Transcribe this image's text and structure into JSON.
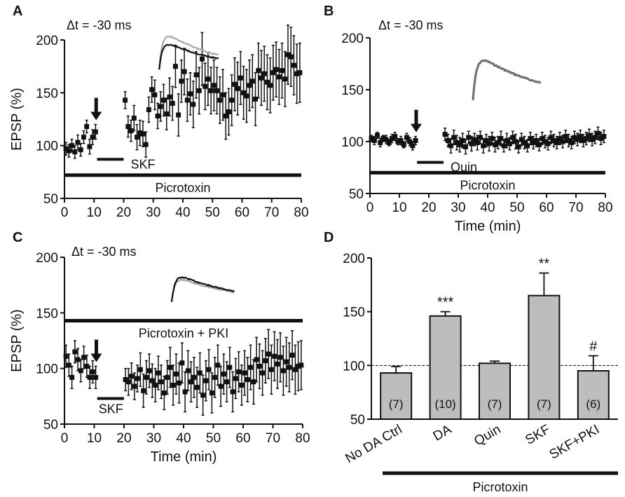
{
  "figure": {
    "panels": [
      "A",
      "B",
      "C",
      "D"
    ]
  },
  "colors": {
    "ink": "#111111",
    "bar": "#bdbdbd",
    "trace_light": "#a8a8a8",
    "trace_dark": "#111111"
  },
  "chart_data": [
    {
      "id": "A",
      "type": "scatter",
      "panel_label": "A",
      "annotation": "Δt = -30 ms",
      "ylabel": "EPSP (%)",
      "xlabel": "",
      "xlim": [
        0,
        80
      ],
      "ylim": [
        50,
        200
      ],
      "xticks": [
        "0",
        "10",
        "20",
        "30",
        "40",
        "50",
        "60",
        "70",
        "80"
      ],
      "yticks": [
        "50",
        "100",
        "150",
        "200"
      ],
      "arrow_at_min": 10,
      "drug_bar": {
        "label": "SKF",
        "from": 11,
        "to": 20,
        "y": 87
      },
      "baseline_bar": {
        "label": "Picrotoxin",
        "from": 0,
        "to": 80,
        "y": 72
      },
      "points": [
        [
          0.5,
          97,
          6
        ],
        [
          1.5,
          95,
          6
        ],
        [
          2.5,
          100,
          6
        ],
        [
          3.5,
          94,
          6
        ],
        [
          4.5,
          103,
          7
        ],
        [
          5.5,
          96,
          6
        ],
        [
          6.5,
          108,
          6
        ],
        [
          7.5,
          118,
          6
        ],
        [
          8.5,
          99,
          7
        ],
        [
          9.5,
          108,
          7
        ],
        [
          10.5,
          113,
          7
        ],
        [
          20.5,
          143,
          8
        ],
        [
          21.5,
          118,
          10
        ],
        [
          22.5,
          114,
          10
        ],
        [
          23.5,
          126,
          12
        ],
        [
          24.5,
          108,
          12
        ],
        [
          25.5,
          112,
          12
        ],
        [
          26.5,
          111,
          12
        ],
        [
          27.5,
          101,
          12
        ],
        [
          28.5,
          134,
          12
        ],
        [
          29.5,
          153,
          12
        ],
        [
          30.5,
          148,
          14
        ],
        [
          31.5,
          128,
          12
        ],
        [
          32.5,
          137,
          14
        ],
        [
          33.5,
          143,
          15
        ],
        [
          34.5,
          130,
          15
        ],
        [
          35.5,
          146,
          18
        ],
        [
          36.5,
          140,
          16
        ],
        [
          37.5,
          175,
          20
        ],
        [
          38.5,
          129,
          20
        ],
        [
          39.5,
          161,
          20
        ],
        [
          40.5,
          170,
          22
        ],
        [
          41.5,
          143,
          20
        ],
        [
          42.5,
          149,
          20
        ],
        [
          43.5,
          139,
          22
        ],
        [
          44.5,
          167,
          22
        ],
        [
          45.5,
          152,
          22
        ],
        [
          46.5,
          182,
          25
        ],
        [
          47.5,
          156,
          22
        ],
        [
          48.5,
          163,
          25
        ],
        [
          49.5,
          152,
          22
        ],
        [
          50.5,
          157,
          24
        ],
        [
          51.5,
          152,
          22
        ],
        [
          52.5,
          143,
          22
        ],
        [
          53.5,
          148,
          24
        ],
        [
          54.5,
          128,
          22
        ],
        [
          55.5,
          132,
          22
        ],
        [
          56.5,
          143,
          24
        ],
        [
          57.5,
          158,
          25
        ],
        [
          58.5,
          154,
          25
        ],
        [
          59.5,
          164,
          25
        ],
        [
          60.5,
          150,
          25
        ],
        [
          61.5,
          147,
          25
        ],
        [
          62.5,
          157,
          24
        ],
        [
          63.5,
          161,
          25
        ],
        [
          64.5,
          144,
          25
        ],
        [
          65.5,
          171,
          26
        ],
        [
          66.5,
          164,
          26
        ],
        [
          67.5,
          168,
          26
        ],
        [
          68.5,
          160,
          26
        ],
        [
          69.5,
          157,
          26
        ],
        [
          70.5,
          169,
          26
        ],
        [
          71.5,
          172,
          26
        ],
        [
          72.5,
          165,
          26
        ],
        [
          73.5,
          171,
          26
        ],
        [
          74.5,
          163,
          26
        ],
        [
          75.5,
          186,
          28
        ],
        [
          76.5,
          184,
          28
        ],
        [
          77.5,
          176,
          28
        ],
        [
          78.5,
          168,
          28
        ],
        [
          79.5,
          169,
          28
        ]
      ],
      "inset": {
        "x0": 32,
        "x1": 52,
        "y_top": 205,
        "y_bottom": 172,
        "overlay_rise": 0.75,
        "style": "light_above"
      }
    },
    {
      "id": "B",
      "type": "scatter",
      "panel_label": "B",
      "annotation": "Δt = -30 ms",
      "ylabel": "",
      "xlabel": "Time (min)",
      "xlim": [
        0,
        80
      ],
      "ylim": [
        50,
        200
      ],
      "xticks": [
        "0",
        "10",
        "20",
        "30",
        "40",
        "50",
        "60",
        "70",
        "80"
      ],
      "yticks": [
        "50",
        "100",
        "150",
        "200"
      ],
      "arrow_at_min": 15,
      "drug_bar": {
        "label": "Quin",
        "from": 16,
        "to": 25,
        "y": 80
      },
      "baseline_bar": {
        "label": "Picrotoxin",
        "from": 0,
        "to": 80,
        "y": 70
      },
      "points": [
        [
          0.5,
          103,
          3
        ],
        [
          1.5,
          101,
          4
        ],
        [
          2.5,
          106,
          3
        ],
        [
          3.5,
          99,
          4
        ],
        [
          4.5,
          103,
          3
        ],
        [
          5.5,
          102,
          4
        ],
        [
          6.5,
          99,
          3
        ],
        [
          7.5,
          103,
          4
        ],
        [
          8.5,
          105,
          4
        ],
        [
          9.5,
          100,
          3
        ],
        [
          10.5,
          101,
          4
        ],
        [
          11.5,
          97,
          3
        ],
        [
          12.5,
          104,
          4
        ],
        [
          13.5,
          100,
          4
        ],
        [
          14.5,
          96,
          4
        ],
        [
          15.5,
          101,
          4
        ],
        [
          25.5,
          107,
          6
        ],
        [
          26.5,
          101,
          6
        ],
        [
          27.5,
          96,
          7
        ],
        [
          28.5,
          104,
          7
        ],
        [
          29.5,
          99,
          7
        ],
        [
          30.5,
          97,
          7
        ],
        [
          31.5,
          101,
          7
        ],
        [
          32.5,
          95,
          7
        ],
        [
          33.5,
          104,
          6
        ],
        [
          34.5,
          98,
          7
        ],
        [
          35.5,
          102,
          6
        ],
        [
          36.5,
          99,
          7
        ],
        [
          37.5,
          104,
          6
        ],
        [
          38.5,
          96,
          7
        ],
        [
          39.5,
          101,
          6
        ],
        [
          40.5,
          98,
          7
        ],
        [
          41.5,
          103,
          6
        ],
        [
          42.5,
          97,
          7
        ],
        [
          43.5,
          99,
          6
        ],
        [
          44.5,
          103,
          7
        ],
        [
          45.5,
          96,
          6
        ],
        [
          46.5,
          101,
          7
        ],
        [
          47.5,
          98,
          6
        ],
        [
          48.5,
          104,
          6
        ],
        [
          49.5,
          100,
          7
        ],
        [
          50.5,
          95,
          6
        ],
        [
          51.5,
          102,
          6
        ],
        [
          52.5,
          99,
          6
        ],
        [
          53.5,
          96,
          6
        ],
        [
          54.5,
          103,
          6
        ],
        [
          55.5,
          99,
          6
        ],
        [
          56.5,
          101,
          6
        ],
        [
          57.5,
          97,
          6
        ],
        [
          58.5,
          103,
          6
        ],
        [
          59.5,
          100,
          6
        ],
        [
          60.5,
          98,
          6
        ],
        [
          61.5,
          104,
          6
        ],
        [
          62.5,
          101,
          6
        ],
        [
          63.5,
          99,
          6
        ],
        [
          64.5,
          103,
          6
        ],
        [
          65.5,
          100,
          6
        ],
        [
          66.5,
          105,
          6
        ],
        [
          67.5,
          101,
          6
        ],
        [
          68.5,
          99,
          6
        ],
        [
          69.5,
          104,
          6
        ],
        [
          70.5,
          102,
          6
        ],
        [
          71.5,
          105,
          6
        ],
        [
          72.5,
          101,
          6
        ],
        [
          73.5,
          103,
          6
        ],
        [
          74.5,
          106,
          6
        ],
        [
          75.5,
          102,
          6
        ],
        [
          76.5,
          104,
          6
        ],
        [
          77.5,
          108,
          6
        ],
        [
          78.5,
          103,
          6
        ],
        [
          79.5,
          105,
          6
        ]
      ],
      "inset": {
        "x0": 35,
        "x1": 58,
        "y_top": 180,
        "y_bottom": 140,
        "overlay_rise": 1.0,
        "style": "single"
      }
    },
    {
      "id": "C",
      "type": "scatter",
      "panel_label": "C",
      "annotation": "Δt = -30 ms",
      "ylabel": "EPSP (%)",
      "xlabel": "Time (min)",
      "xlim": [
        0,
        80
      ],
      "ylim": [
        50,
        200
      ],
      "xticks": [
        "0",
        "10",
        "20",
        "30",
        "40",
        "50",
        "60",
        "70",
        "80"
      ],
      "yticks": [
        "50",
        "100",
        "150",
        "200"
      ],
      "arrow_at_min": 10,
      "drug_bar": {
        "label": "SKF",
        "from": 11,
        "to": 20,
        "y": 73
      },
      "baseline_bar": {
        "label": "Picrotoxin + PKI",
        "from": 0,
        "to": 80,
        "y": 143
      },
      "points": [
        [
          0.5,
          111,
          10
        ],
        [
          1.5,
          103,
          10
        ],
        [
          2.5,
          92,
          10
        ],
        [
          3.5,
          115,
          10
        ],
        [
          4.5,
          108,
          10
        ],
        [
          5.5,
          98,
          10
        ],
        [
          6.5,
          110,
          10
        ],
        [
          7.5,
          102,
          10
        ],
        [
          8.5,
          92,
          10
        ],
        [
          9.5,
          97,
          10
        ],
        [
          10.5,
          92,
          10
        ],
        [
          20.5,
          90,
          10
        ],
        [
          21.5,
          88,
          12
        ],
        [
          22.5,
          93,
          12
        ],
        [
          23.5,
          84,
          12
        ],
        [
          24.5,
          91,
          12
        ],
        [
          25.5,
          99,
          15
        ],
        [
          26.5,
          80,
          15
        ],
        [
          27.5,
          92,
          15
        ],
        [
          28.5,
          98,
          15
        ],
        [
          29.5,
          89,
          15
        ],
        [
          30.5,
          85,
          15
        ],
        [
          31.5,
          96,
          15
        ],
        [
          32.5,
          88,
          15
        ],
        [
          33.5,
          78,
          15
        ],
        [
          34.5,
          92,
          15
        ],
        [
          35.5,
          101,
          18
        ],
        [
          36.5,
          85,
          18
        ],
        [
          37.5,
          95,
          18
        ],
        [
          38.5,
          87,
          18
        ],
        [
          39.5,
          105,
          18
        ],
        [
          40.5,
          79,
          18
        ],
        [
          41.5,
          98,
          18
        ],
        [
          42.5,
          88,
          18
        ],
        [
          43.5,
          92,
          18
        ],
        [
          44.5,
          83,
          18
        ],
        [
          45.5,
          96,
          18
        ],
        [
          46.5,
          76,
          18
        ],
        [
          47.5,
          89,
          18
        ],
        [
          48.5,
          99,
          18
        ],
        [
          49.5,
          78,
          18
        ],
        [
          50.5,
          92,
          18
        ],
        [
          51.5,
          103,
          18
        ],
        [
          52.5,
          84,
          18
        ],
        [
          53.5,
          95,
          18
        ],
        [
          54.5,
          88,
          18
        ],
        [
          55.5,
          101,
          18
        ],
        [
          56.5,
          79,
          18
        ],
        [
          57.5,
          91,
          18
        ],
        [
          58.5,
          97,
          18
        ],
        [
          59.5,
          85,
          18
        ],
        [
          60.5,
          96,
          20
        ],
        [
          61.5,
          90,
          20
        ],
        [
          62.5,
          101,
          20
        ],
        [
          63.5,
          88,
          20
        ],
        [
          64.5,
          108,
          20
        ],
        [
          65.5,
          102,
          20
        ],
        [
          66.5,
          96,
          20
        ],
        [
          67.5,
          107,
          20
        ],
        [
          68.5,
          113,
          22
        ],
        [
          69.5,
          99,
          22
        ],
        [
          70.5,
          111,
          22
        ],
        [
          71.5,
          104,
          22
        ],
        [
          72.5,
          110,
          22
        ],
        [
          73.5,
          98,
          22
        ],
        [
          74.5,
          106,
          22
        ],
        [
          75.5,
          101,
          22
        ],
        [
          76.5,
          112,
          22
        ],
        [
          77.5,
          99,
          22
        ],
        [
          78.5,
          102,
          22
        ],
        [
          79.5,
          103,
          22
        ]
      ],
      "inset": {
        "x0": 36,
        "x1": 57,
        "y_top": 183,
        "y_bottom": 160,
        "overlay_rise": 0.9,
        "style": "dark_above"
      }
    },
    {
      "id": "D",
      "type": "bar",
      "panel_label": "D",
      "ylabel": "",
      "ylim": [
        50,
        200
      ],
      "yticks": [
        "50",
        "100",
        "150",
        "200"
      ],
      "categories": [
        "No DA Ctrl",
        "DA",
        "Quin",
        "SKF",
        "SKF+PKI"
      ],
      "values": [
        93,
        146,
        102,
        165,
        95
      ],
      "errors": [
        6,
        4,
        2,
        21,
        14
      ],
      "n_labels": [
        "(7)",
        "(10)",
        "(7)",
        "(7)",
        "(6)"
      ],
      "significance": [
        "",
        "***",
        "",
        "**",
        "#"
      ],
      "reference_line": 100,
      "group_bar_label": "Picrotoxin"
    }
  ]
}
